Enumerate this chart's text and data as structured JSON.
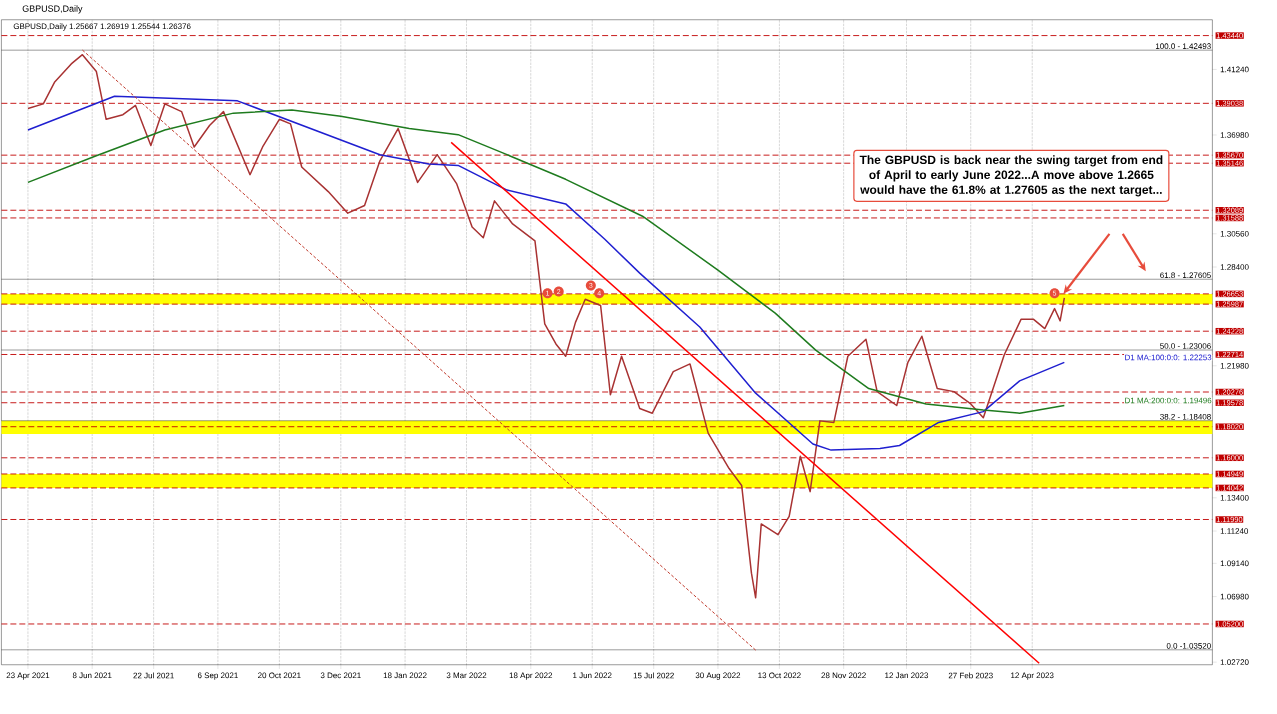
{
  "chart_data": {
    "type": "line",
    "title": "GBPUSD,Daily",
    "subtitle": "GBPUSD,Daily  1.25667 1.26919 1.25544 1.26376",
    "xlim": [
      "2021-04-04",
      "2023-08-19"
    ],
    "ylim": [
      1.0255,
      1.4447
    ],
    "xticks": [
      {
        "value": "2021-04-23",
        "label": "23 Apr 2021"
      },
      {
        "value": "2021-06-08",
        "label": "8 Jun 2021"
      },
      {
        "value": "2021-07-22",
        "label": "22 Jul 2021"
      },
      {
        "value": "2021-09-06",
        "label": "6 Sep 2021"
      },
      {
        "value": "2021-10-20",
        "label": "20 Oct 2021"
      },
      {
        "value": "2021-12-03",
        "label": "3 Dec 2021"
      },
      {
        "value": "2022-01-18",
        "label": "18 Jan 2022"
      },
      {
        "value": "2022-03-03",
        "label": "3 Mar 2022"
      },
      {
        "value": "2022-04-18",
        "label": "18 Apr 2022"
      },
      {
        "value": "2022-06-01",
        "label": "1 Jun 2022"
      },
      {
        "value": "2022-07-15",
        "label": "15 Jul 2022"
      },
      {
        "value": "2022-08-30",
        "label": "30 Aug 2022"
      },
      {
        "value": "2022-10-13",
        "label": "13 Oct 2022"
      },
      {
        "value": "2022-11-28",
        "label": "28 Nov 2022"
      },
      {
        "value": "2023-01-12",
        "label": "12 Jan 2023"
      },
      {
        "value": "2023-02-27",
        "label": "27 Feb 2023"
      },
      {
        "value": "2023-04-12",
        "label": "12 Apr 2023"
      }
    ],
    "yticks": [
      {
        "value": 1.4124,
        "label": "1.41240"
      },
      {
        "value": 1.3698,
        "label": "1.36980"
      },
      {
        "value": 1.3056,
        "label": "1.30560"
      },
      {
        "value": 1.284,
        "label": "1.28400"
      },
      {
        "value": 1.2198,
        "label": "1.21980"
      },
      {
        "value": 1.134,
        "label": "1.13400"
      },
      {
        "value": 1.1124,
        "label": "1.11240"
      },
      {
        "value": 1.0914,
        "label": "1.09140"
      },
      {
        "value": 1.0698,
        "label": "1.06980"
      },
      {
        "value": 1.0272,
        "label": "1.02720"
      }
    ],
    "grid": "x",
    "series": [
      {
        "color": "#a83232",
        "x": [
          "2021-04-23",
          "2021-05-04",
          "2021-05-12",
          "2021-05-24",
          "2021-06-01",
          "2021-06-11",
          "2021-06-18",
          "2021-06-30",
          "2021-07-09",
          "2021-07-20",
          "2021-07-30",
          "2021-08-11",
          "2021-08-20",
          "2021-08-31",
          "2021-09-10",
          "2021-09-29",
          "2021-10-08",
          "2021-10-20",
          "2021-10-28",
          "2021-11-05",
          "2021-11-24",
          "2021-12-08",
          "2021-12-20",
          "2021-12-31",
          "2022-01-13",
          "2022-01-27",
          "2022-02-10",
          "2022-02-24",
          "2022-03-07",
          "2022-03-15",
          "2022-03-23",
          "2022-04-05",
          "2022-04-21",
          "2022-04-28",
          "2022-05-06",
          "2022-05-13",
          "2022-05-20",
          "2022-05-27",
          "2022-06-07",
          "2022-06-14",
          "2022-06-22",
          "2022-07-05",
          "2022-07-14",
          "2022-07-29",
          "2022-08-10",
          "2022-08-23",
          "2022-09-07",
          "2022-09-16",
          "2022-09-23",
          "2022-09-26",
          "2022-09-30",
          "2022-10-12",
          "2022-10-20",
          "2022-10-28",
          "2022-11-04",
          "2022-11-11",
          "2022-11-21",
          "2022-12-01",
          "2022-12-14",
          "2022-12-22",
          "2023-01-05",
          "2023-01-13",
          "2023-01-23",
          "2023-02-03",
          "2023-02-15",
          "2023-02-27",
          "2023-03-08",
          "2023-03-15",
          "2023-03-23",
          "2023-04-04",
          "2023-04-13",
          "2023-04-21",
          "2023-04-28",
          "2023-05-02",
          "2023-05-05"
        ],
        "values": [
          1.387,
          1.39,
          1.404,
          1.416,
          1.422,
          1.411,
          1.38,
          1.383,
          1.389,
          1.363,
          1.39,
          1.385,
          1.362,
          1.376,
          1.385,
          1.344,
          1.362,
          1.38,
          1.377,
          1.349,
          1.333,
          1.319,
          1.324,
          1.353,
          1.374,
          1.339,
          1.357,
          1.338,
          1.31,
          1.303,
          1.327,
          1.312,
          1.301,
          1.247,
          1.234,
          1.226,
          1.248,
          1.263,
          1.259,
          1.201,
          1.226,
          1.192,
          1.189,
          1.216,
          1.221,
          1.176,
          1.153,
          1.142,
          1.085,
          1.069,
          1.117,
          1.11,
          1.122,
          1.161,
          1.138,
          1.184,
          1.183,
          1.226,
          1.237,
          1.203,
          1.194,
          1.222,
          1.239,
          1.205,
          1.203,
          1.195,
          1.186,
          1.205,
          1.227,
          1.25,
          1.25,
          1.244,
          1.257,
          1.249,
          1.264
        ]
      },
      {
        "name": "D1 MA:100:0:0: 1.22253",
        "color": "#1f1fd0",
        "x": [
          "2021-04-23",
          "2021-06-24",
          "2021-09-20",
          "2021-12-31",
          "2022-02-04",
          "2022-02-25",
          "2022-04-01",
          "2022-05-13",
          "2022-06-10",
          "2022-07-05",
          "2022-08-17",
          "2022-09-26",
          "2022-11-06",
          "2022-11-19",
          "2022-12-24",
          "2023-01-07",
          "2023-02-04",
          "2023-03-08",
          "2023-04-03",
          "2023-05-05"
        ],
        "values": [
          1.373,
          1.395,
          1.392,
          1.357,
          1.351,
          1.35,
          1.334,
          1.325,
          1.302,
          1.28,
          1.245,
          1.202,
          1.169,
          1.165,
          1.166,
          1.168,
          1.183,
          1.19,
          1.21,
          1.222
        ]
      },
      {
        "name": "D1 MA:200:0:0: 1.19496",
        "color": "#1e7b1e",
        "x": [
          "2021-04-23",
          "2021-06-10",
          "2021-07-30",
          "2021-09-17",
          "2021-10-29",
          "2021-12-03",
          "2022-01-21",
          "2022-02-25",
          "2022-04-01",
          "2022-05-13",
          "2022-07-07",
          "2022-08-30",
          "2022-10-10",
          "2022-11-08",
          "2022-12-16",
          "2023-01-26",
          "2023-03-08",
          "2023-04-03",
          "2023-05-05"
        ],
        "values": [
          1.339,
          1.356,
          1.373,
          1.384,
          1.386,
          1.382,
          1.374,
          1.37,
          1.357,
          1.341,
          1.317,
          1.282,
          1.254,
          1.23,
          1.205,
          1.195,
          1.191,
          1.189,
          1.194
        ]
      },
      {
        "color": "#ff0000",
        "x": [
          "2022-02-20",
          "2023-04-17"
        ],
        "values": [
          1.365,
          1.0265
        ]
      },
      {
        "color": "#c0392b",
        "line_style": "dotted",
        "x": [
          "2021-06-01",
          "2022-09-26"
        ],
        "values": [
          1.425,
          1.035
        ]
      }
    ],
    "bands": [
      {
        "axis": "y",
        "from": 1.25987,
        "to": 1.26653,
        "color": "#ffff00"
      },
      {
        "axis": "y",
        "from": 1.1755,
        "to": 1.184,
        "color": "#ffff00"
      },
      {
        "axis": "y",
        "from": 1.14042,
        "to": 1.14949,
        "color": "#ffff00"
      }
    ],
    "ref_lines": [
      {
        "axis": "y",
        "value": 1.4344,
        "label": "1.43440",
        "color": "#c00000",
        "line_style": "dashed"
      },
      {
        "axis": "y",
        "value": 1.39038,
        "label": "1.39038",
        "color": "#c00000",
        "line_style": "dashed"
      },
      {
        "axis": "y",
        "value": 1.3567,
        "label": "1.35670",
        "color": "#c00000",
        "line_style": "dashed"
      },
      {
        "axis": "y",
        "value": 1.35146,
        "label": "1.35146",
        "color": "#c00000",
        "line_style": "dashed"
      },
      {
        "axis": "y",
        "value": 1.32089,
        "label": "1.32089",
        "color": "#c00000",
        "line_style": "dashed"
      },
      {
        "axis": "y",
        "value": 1.31588,
        "label": "1.31588",
        "color": "#c00000",
        "line_style": "dashed"
      },
      {
        "axis": "y",
        "value": 1.26653,
        "label": "1.26653",
        "color": "#c00000",
        "line_style": "dashed"
      },
      {
        "axis": "y",
        "value": 1.25987,
        "label": "1.25987",
        "color": "#c00000",
        "line_style": "dashed"
      },
      {
        "axis": "y",
        "value": 1.24228,
        "label": "1.24228",
        "color": "#c00000",
        "line_style": "dashed"
      },
      {
        "axis": "y",
        "value": 1.22714,
        "label": "1.22714",
        "color": "#c00000",
        "line_style": "dashed"
      },
      {
        "axis": "y",
        "value": 1.20276,
        "label": "1.20276",
        "color": "#c00000",
        "line_style": "dashed"
      },
      {
        "axis": "y",
        "value": 1.19578,
        "label": "1.19578",
        "color": "#c00000",
        "line_style": "dashed"
      },
      {
        "axis": "y",
        "value": 1.1802,
        "label": "1.18020",
        "color": "#c00000",
        "line_style": "dashed"
      },
      {
        "axis": "y",
        "value": 1.16,
        "label": "1.16000",
        "color": "#c00000",
        "line_style": "dashed"
      },
      {
        "axis": "y",
        "value": 1.14949,
        "label": "1.14949",
        "color": "#c00000",
        "line_style": "dashed"
      },
      {
        "axis": "y",
        "value": 1.14042,
        "label": "1.14042",
        "color": "#c00000",
        "line_style": "dashed"
      },
      {
        "axis": "y",
        "value": 1.1199,
        "label": "1.11990",
        "color": "#c00000",
        "line_style": "dashed"
      },
      {
        "axis": "y",
        "value": 1.052,
        "label": "1.05200",
        "color": "#c00000",
        "line_style": "dashed"
      },
      {
        "axis": "y",
        "value": 1.42493,
        "color": "#000000",
        "line_style": "solid"
      },
      {
        "axis": "y",
        "value": 1.27605,
        "color": "#000000",
        "line_style": "solid"
      },
      {
        "axis": "y",
        "value": 1.23006,
        "color": "#000000",
        "line_style": "solid"
      },
      {
        "axis": "y",
        "value": 1.18408,
        "color": "#000000",
        "line_style": "solid"
      },
      {
        "axis": "y",
        "value": 1.0352,
        "color": "#000000",
        "line_style": "solid"
      }
    ],
    "annotations": [
      "The GBPUSD is back near the swing target from end of April to early June 2022...A move above 1.2665 would have the 61.8% at 1.27605 as the next target...",
      {
        "text": "1",
        "x": "2022-04-30",
        "y": 1.267
      },
      {
        "text": "2",
        "x": "2022-05-08",
        "y": 1.268
      },
      {
        "text": "3",
        "x": "2022-05-31",
        "y": 1.272
      },
      {
        "text": "4",
        "x": "2022-06-06",
        "y": 1.267
      },
      {
        "text": "5",
        "x": "2023-04-28",
        "y": 1.267
      },
      {
        "text": "100.0 - 1.42493",
        "x": "2023-08-19",
        "y": 1.42493
      },
      {
        "text": "61.8 - 1.27605",
        "x": "2023-08-19",
        "y": 1.27605
      },
      {
        "text": "50.0 - 1.23006",
        "x": "2023-08-19",
        "y": 1.23006
      },
      {
        "text": "38.2 - 1.18408",
        "x": "2023-08-19",
        "y": 1.18408
      },
      {
        "text": "0.0 -1.03520",
        "x": "2023-08-19",
        "y": 1.0352
      }
    ]
  }
}
